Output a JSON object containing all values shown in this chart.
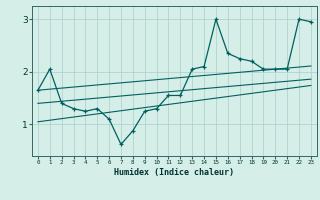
{
  "x": [
    0,
    1,
    2,
    3,
    4,
    5,
    6,
    7,
    8,
    9,
    10,
    11,
    12,
    13,
    14,
    15,
    16,
    17,
    18,
    19,
    20,
    21,
    22,
    23
  ],
  "y_main": [
    1.65,
    2.05,
    1.4,
    1.3,
    1.25,
    1.3,
    1.1,
    0.62,
    0.88,
    1.25,
    1.3,
    1.55,
    1.55,
    2.05,
    2.1,
    3.0,
    2.35,
    2.25,
    2.2,
    2.05,
    2.05,
    2.05,
    3.0,
    2.95
  ],
  "y_line1": [
    1.05,
    1.08,
    1.11,
    1.14,
    1.17,
    1.2,
    1.23,
    1.26,
    1.29,
    1.32,
    1.35,
    1.38,
    1.41,
    1.44,
    1.47,
    1.5,
    1.53,
    1.56,
    1.59,
    1.62,
    1.65,
    1.68,
    1.71,
    1.74
  ],
  "y_line2": [
    1.4,
    1.42,
    1.44,
    1.46,
    1.48,
    1.5,
    1.52,
    1.54,
    1.56,
    1.58,
    1.6,
    1.62,
    1.64,
    1.66,
    1.68,
    1.7,
    1.72,
    1.74,
    1.76,
    1.78,
    1.8,
    1.82,
    1.84,
    1.86
  ],
  "y_line3": [
    1.65,
    1.67,
    1.69,
    1.71,
    1.73,
    1.75,
    1.77,
    1.79,
    1.81,
    1.83,
    1.85,
    1.87,
    1.89,
    1.91,
    1.93,
    1.95,
    1.97,
    1.99,
    2.01,
    2.03,
    2.05,
    2.07,
    2.09,
    2.11
  ],
  "bg_color": "#d6eee8",
  "line_color": "#006060",
  "grid_color": "#aacccc",
  "xlabel": "Humidex (Indice chaleur)",
  "yticks": [
    1,
    2,
    3
  ],
  "ylim": [
    0.4,
    3.25
  ],
  "xlim": [
    -0.5,
    23.5
  ]
}
